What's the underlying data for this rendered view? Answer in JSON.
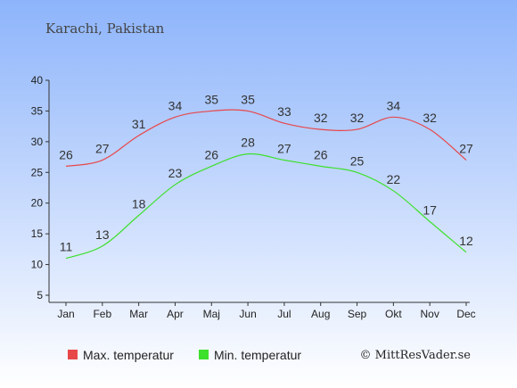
{
  "chart_data": {
    "type": "line",
    "title": "Karachi, Pakistan",
    "xlabel": "",
    "ylabel": "",
    "categories": [
      "Jan",
      "Feb",
      "Mar",
      "Apr",
      "Maj",
      "Jun",
      "Jul",
      "Aug",
      "Sep",
      "Okt",
      "Nov",
      "Dec"
    ],
    "ylim": [
      5,
      40
    ],
    "yticks": [
      5,
      10,
      15,
      20,
      25,
      30,
      35,
      40
    ],
    "grid": false,
    "legend_position": "bottom-left",
    "series": [
      {
        "name": "Max. temperatur",
        "color": "#e8474a",
        "values": [
          26,
          27,
          31,
          34,
          35,
          35,
          33,
          32,
          32,
          34,
          32,
          27
        ]
      },
      {
        "name": "Min. temperatur",
        "color": "#3de02b",
        "values": [
          11,
          13,
          18,
          23,
          26,
          28,
          27,
          26,
          25,
          22,
          17,
          12
        ]
      }
    ]
  },
  "credit": "© MittResVader.se",
  "colors": {
    "background_top": "#8db4fb",
    "background_bottom": "#ffffff",
    "axis": "#333333"
  }
}
